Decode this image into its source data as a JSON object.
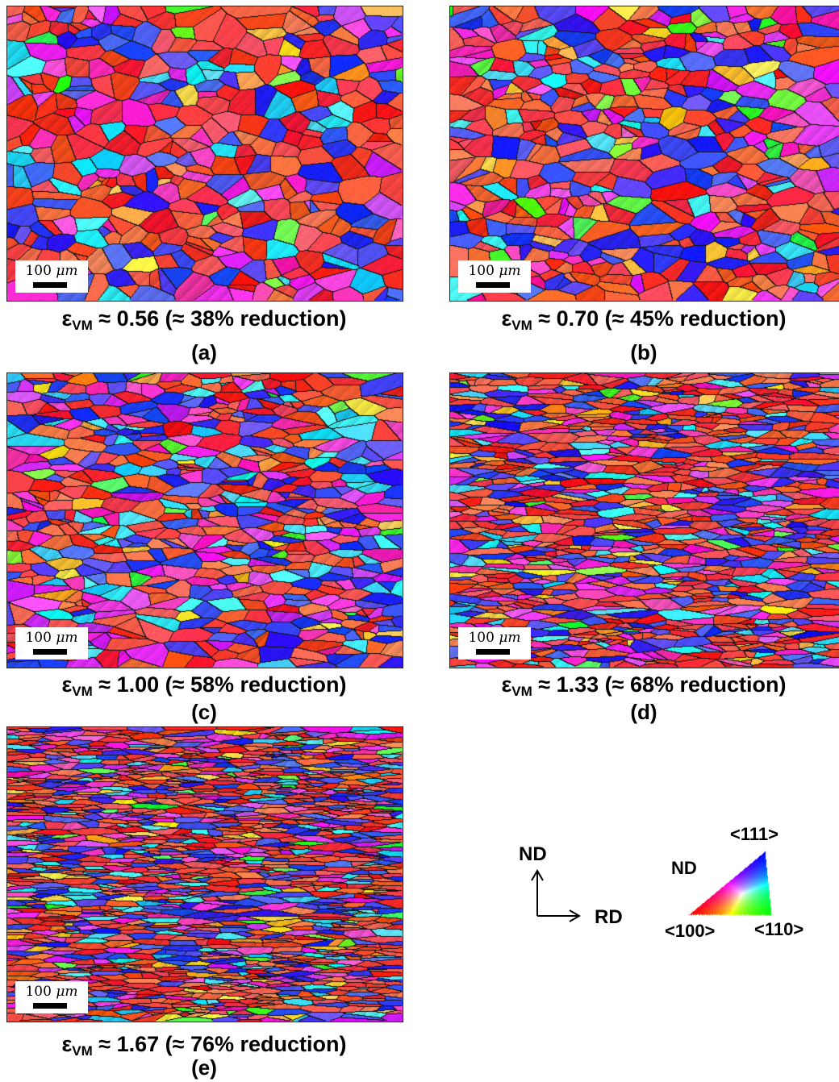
{
  "scale_bar": {
    "value": "100",
    "unit": "μm"
  },
  "panels": [
    {
      "letter": "(a)",
      "caption": {
        "symbol": "ε",
        "sub": "VM",
        "rest": " ≈ 0.56 (≈ 38% reduction)"
      }
    },
    {
      "letter": "(b)",
      "caption": {
        "symbol": "ε",
        "sub": "VM",
        "rest": " ≈ 0.70 (≈ 45% reduction)"
      }
    },
    {
      "letter": "(c)",
      "caption": {
        "symbol": "ε",
        "sub": "VM",
        "rest": " ≈ 1.00 (≈ 58% reduction)"
      }
    },
    {
      "letter": "(d)",
      "caption": {
        "symbol": "ε",
        "sub": "VM",
        "rest": " ≈ 1.33 (≈ 68% reduction)"
      }
    },
    {
      "letter": "(e)",
      "caption": {
        "symbol": "ε",
        "sub": "VM",
        "rest": " ≈ 1.67 (≈ 76% reduction)"
      }
    }
  ],
  "axes": {
    "vertical": "ND",
    "horizontal": "RD"
  },
  "ipf_legend": {
    "title": "ND",
    "top": "<111>",
    "left": "<100>",
    "right": "<110>"
  },
  "colors": {
    "red_100": "#ff2a1a",
    "green_110": "#28e24a",
    "blue_111": "#2430ff"
  }
}
